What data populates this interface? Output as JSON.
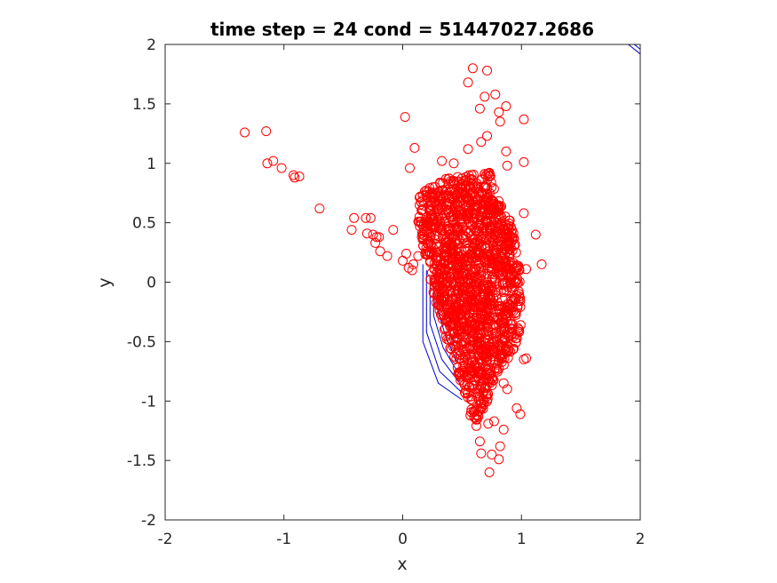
{
  "chart_data": {
    "type": "scatter",
    "title": "time step = 24 cond = 51447027.2686",
    "xlabel": "x",
    "ylabel": "y",
    "xlim": [
      -2,
      2
    ],
    "ylim": [
      -2,
      2
    ],
    "xticks": [
      -2,
      -1,
      0,
      1,
      2
    ],
    "yticks": [
      -2,
      -1.5,
      -1,
      -0.5,
      0,
      0.5,
      1,
      1.5,
      2
    ],
    "xtick_labels": [
      "-2",
      "-1",
      "0",
      "1",
      "2"
    ],
    "ytick_labels": [
      "-2",
      "-1.5",
      "-1",
      "-0.5",
      "0",
      "0.5",
      "1",
      "1.5",
      "2"
    ],
    "grid": false,
    "marker": "circle-open",
    "marker_color": "#ff0000",
    "contour_color": "#0000cc",
    "outlier_points": [
      {
        "x": -1.33,
        "y": 1.26
      },
      {
        "x": -1.15,
        "y": 1.27
      },
      {
        "x": -1.14,
        "y": 1.0
      },
      {
        "x": -1.09,
        "y": 1.02
      },
      {
        "x": -1.02,
        "y": 0.96
      },
      {
        "x": -0.92,
        "y": 0.9
      },
      {
        "x": -0.91,
        "y": 0.88
      },
      {
        "x": -0.87,
        "y": 0.89
      },
      {
        "x": -0.7,
        "y": 0.62
      },
      {
        "x": -0.41,
        "y": 0.54
      },
      {
        "x": -0.43,
        "y": 0.44
      },
      {
        "x": -0.31,
        "y": 0.54
      },
      {
        "x": -0.27,
        "y": 0.54
      },
      {
        "x": -0.3,
        "y": 0.41
      },
      {
        "x": -0.25,
        "y": 0.4
      },
      {
        "x": -0.22,
        "y": 0.38
      },
      {
        "x": -0.2,
        "y": 0.38
      },
      {
        "x": -0.23,
        "y": 0.33
      },
      {
        "x": -0.19,
        "y": 0.26
      },
      {
        "x": -0.13,
        "y": 0.22
      },
      {
        "x": -0.08,
        "y": 0.44
      },
      {
        "x": 0.0,
        "y": 0.18
      },
      {
        "x": 0.03,
        "y": 0.24
      },
      {
        "x": 0.05,
        "y": 0.12
      },
      {
        "x": 0.08,
        "y": 0.1
      },
      {
        "x": 0.09,
        "y": 0.15
      },
      {
        "x": 0.13,
        "y": 0.22
      },
      {
        "x": 0.02,
        "y": 1.39
      },
      {
        "x": 0.06,
        "y": 0.96
      },
      {
        "x": 0.1,
        "y": 1.13
      },
      {
        "x": 0.59,
        "y": 1.8
      },
      {
        "x": 0.71,
        "y": 1.78
      },
      {
        "x": 0.55,
        "y": 1.68
      },
      {
        "x": 0.78,
        "y": 1.58
      },
      {
        "x": 0.69,
        "y": 1.56
      },
      {
        "x": 0.65,
        "y": 1.46
      },
      {
        "x": 0.87,
        "y": 1.48
      },
      {
        "x": 0.81,
        "y": 1.43
      },
      {
        "x": 1.02,
        "y": 1.37
      },
      {
        "x": 0.82,
        "y": 1.35
      },
      {
        "x": 0.71,
        "y": 1.23
      },
      {
        "x": 0.66,
        "y": 1.18
      },
      {
        "x": 0.87,
        "y": 1.1
      },
      {
        "x": 0.55,
        "y": 1.12
      },
      {
        "x": 1.02,
        "y": 1.01
      },
      {
        "x": 0.33,
        "y": 1.02
      },
      {
        "x": 0.43,
        "y": 1.0
      },
      {
        "x": 0.88,
        "y": 0.98
      },
      {
        "x": 1.12,
        "y": 0.4
      },
      {
        "x": 1.17,
        "y": 0.15
      },
      {
        "x": 1.02,
        "y": 0.58
      },
      {
        "x": 1.04,
        "y": 0.11
      },
      {
        "x": 0.98,
        "y": -0.1
      },
      {
        "x": 1.02,
        "y": -0.65
      },
      {
        "x": 1.04,
        "y": -0.64
      },
      {
        "x": 0.98,
        "y": -0.4
      },
      {
        "x": 0.88,
        "y": -0.9
      },
      {
        "x": 0.85,
        "y": -0.85
      },
      {
        "x": 0.96,
        "y": -1.06
      },
      {
        "x": 0.99,
        "y": -1.11
      },
      {
        "x": 0.73,
        "y": -1.6
      },
      {
        "x": 0.81,
        "y": -1.49
      },
      {
        "x": 0.75,
        "y": -1.45
      },
      {
        "x": 0.66,
        "y": -1.44
      },
      {
        "x": 0.85,
        "y": -1.24
      },
      {
        "x": 0.82,
        "y": -1.38
      },
      {
        "x": 0.65,
        "y": -1.34
      },
      {
        "x": 0.62,
        "y": -1.21
      },
      {
        "x": 0.72,
        "y": -1.19
      },
      {
        "x": 0.77,
        "y": -1.17
      },
      {
        "x": 0.57,
        "y": -1.12
      }
    ],
    "cloud_region": {
      "polygon": [
        {
          "x": 0.14,
          "y": 0.72
        },
        {
          "x": 0.22,
          "y": 0.8
        },
        {
          "x": 0.38,
          "y": 0.88
        },
        {
          "x": 0.55,
          "y": 0.9
        },
        {
          "x": 0.72,
          "y": 0.95
        },
        {
          "x": 0.8,
          "y": 0.7
        },
        {
          "x": 0.92,
          "y": 0.5
        },
        {
          "x": 0.99,
          "y": 0.1
        },
        {
          "x": 1.0,
          "y": -0.4
        },
        {
          "x": 0.92,
          "y": -0.6
        },
        {
          "x": 0.78,
          "y": -0.8
        },
        {
          "x": 0.7,
          "y": -1.05
        },
        {
          "x": 0.62,
          "y": -1.18
        },
        {
          "x": 0.55,
          "y": -1.05
        },
        {
          "x": 0.46,
          "y": -0.75
        },
        {
          "x": 0.36,
          "y": -0.45
        },
        {
          "x": 0.26,
          "y": -0.1
        },
        {
          "x": 0.18,
          "y": 0.25
        },
        {
          "x": 0.13,
          "y": 0.5
        }
      ],
      "count": 1600,
      "seed": 24
    },
    "contours": [
      [
        {
          "x": 0.17,
          "y": 0.15
        },
        {
          "x": 0.17,
          "y": -0.5
        },
        {
          "x": 0.3,
          "y": -0.85
        },
        {
          "x": 0.5,
          "y": -0.99
        }
      ],
      [
        {
          "x": 0.2,
          "y": 0.1
        },
        {
          "x": 0.2,
          "y": -0.42
        },
        {
          "x": 0.31,
          "y": -0.75
        },
        {
          "x": 0.49,
          "y": -0.92
        }
      ],
      [
        {
          "x": 0.23,
          "y": 0.05
        },
        {
          "x": 0.23,
          "y": -0.35
        },
        {
          "x": 0.33,
          "y": -0.65
        },
        {
          "x": 0.48,
          "y": -0.85
        }
      ],
      [
        {
          "x": 0.26,
          "y": 0.0
        },
        {
          "x": 0.26,
          "y": -0.28
        },
        {
          "x": 0.34,
          "y": -0.55
        },
        {
          "x": 0.47,
          "y": -0.77
        }
      ],
      [
        {
          "x": 0.29,
          "y": -0.05
        },
        {
          "x": 0.29,
          "y": -0.22
        },
        {
          "x": 0.36,
          "y": -0.45
        },
        {
          "x": 0.46,
          "y": -0.68
        }
      ],
      [
        {
          "x": 0.32,
          "y": -0.1
        },
        {
          "x": 0.32,
          "y": -0.18
        },
        {
          "x": 0.38,
          "y": -0.36
        },
        {
          "x": 0.45,
          "y": -0.58
        }
      ],
      [
        {
          "x": 1.9,
          "y": 2.0
        },
        {
          "x": 2.0,
          "y": 1.92
        }
      ],
      [
        {
          "x": 1.95,
          "y": 2.0
        },
        {
          "x": 2.0,
          "y": 1.96
        }
      ]
    ]
  }
}
